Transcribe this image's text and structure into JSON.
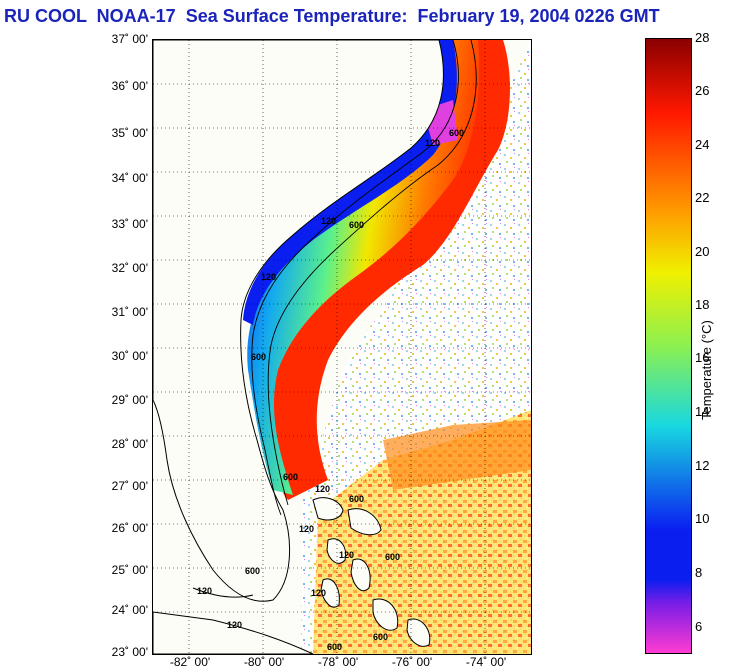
{
  "title": "RU COOL  NOAA-17  Sea Surface Temperature:  February 19, 2004 0226 GMT",
  "map": {
    "lat_labels": [
      "37˚ 00'",
      "36˚ 00'",
      "35˚ 00'",
      "34˚ 00'",
      "33˚ 00'",
      "32˚ 00'",
      "31˚ 00'",
      "30˚ 00'",
      "29˚ 00'",
      "28˚ 00'",
      "27˚ 00'",
      "26˚ 00'",
      "25˚ 00'",
      "24˚ 00'",
      "23˚ 00'"
    ],
    "lon_labels": [
      "-82˚ 00'",
      "-80˚ 00'",
      "-78˚ 00'",
      "-76˚ 00'",
      "-74˚ 00'"
    ],
    "contour_labels": [
      "600",
      "120",
      "600",
      "120",
      "120",
      "600",
      "600",
      "120",
      "600",
      "120",
      "120",
      "600",
      "600",
      "120",
      "120",
      "600",
      "120",
      "600"
    ],
    "lat_range": [
      23,
      37
    ],
    "lon_range": [
      -83,
      -73
    ]
  },
  "colorbar": {
    "title": "Temperature (°C)",
    "ticks": [
      "28",
      "26",
      "24",
      "22",
      "20",
      "18",
      "16",
      "14",
      "12",
      "10",
      "8",
      "6"
    ],
    "range": [
      5,
      28
    ],
    "colors": {
      "cold": "#ff3cd2",
      "violet": "#7a1ee6",
      "blue": "#0a1ef0",
      "cyan": "#18d8e0",
      "green": "#8cf050",
      "yellow": "#f0f000",
      "orange": "#ff9a00",
      "red": "#ff1800",
      "dark-red": "#8a0000"
    }
  }
}
